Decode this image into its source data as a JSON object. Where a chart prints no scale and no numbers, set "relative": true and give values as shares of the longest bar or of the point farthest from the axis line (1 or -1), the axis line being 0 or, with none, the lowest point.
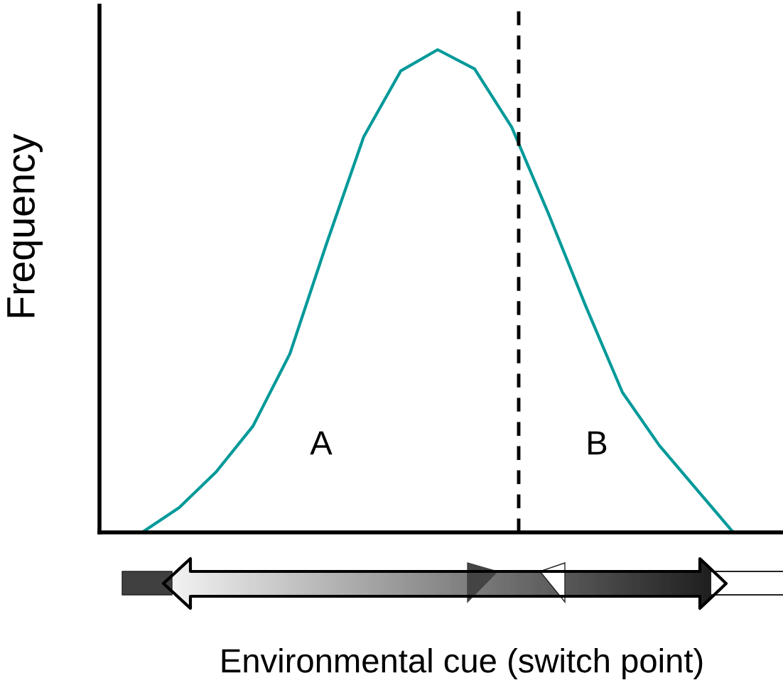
{
  "chart_data": {
    "type": "line",
    "relative": true,
    "xlabel": "Environmental cue (switch point)",
    "ylabel": "Frequency",
    "categories": [
      null,
      null,
      null,
      null,
      null,
      null,
      null,
      null,
      null,
      null,
      null,
      null,
      null,
      null,
      null,
      null,
      null
    ],
    "series": [
      {
        "color": "#009999",
        "values": [
          0,
          0.051,
          0.125,
          0.22,
          0.37,
          0.6,
          0.82,
          0.956,
          1,
          0.96,
          0.84,
          0.66,
          0.47,
          0.29,
          0.18,
          0.09,
          0
        ]
      }
    ],
    "annotations": [
      "A",
      "B"
    ],
    "marker": "none",
    "line_style": "solid"
  }
}
